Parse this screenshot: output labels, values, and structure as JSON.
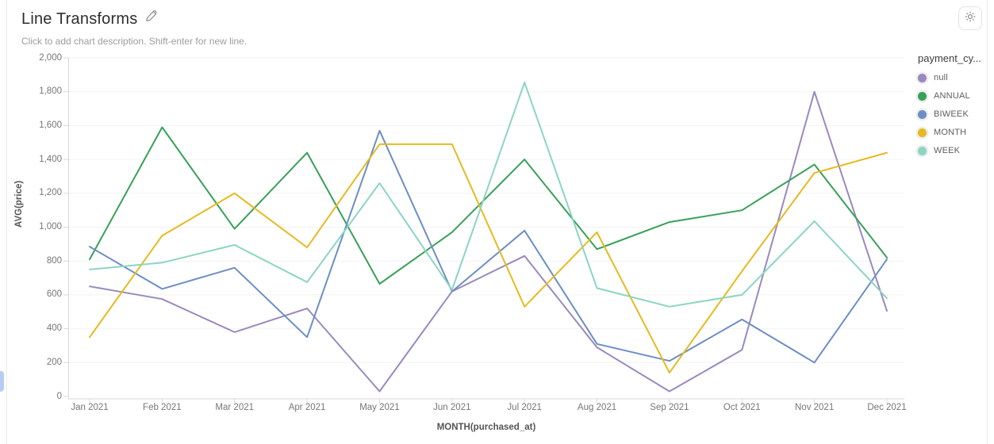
{
  "header": {
    "title": "Line Transforms",
    "subtitle": "Click to add chart description. Shift-enter for new line."
  },
  "toolbar": {
    "settings_icon": "gear-icon",
    "edit_icon": "pencil-icon"
  },
  "legend": {
    "title": "payment_cy...",
    "items": [
      {
        "label": "null",
        "color": "#9a89bd"
      },
      {
        "label": "ANNUAL",
        "color": "#38a158"
      },
      {
        "label": "BIWEEK",
        "color": "#6d8ec4"
      },
      {
        "label": "MONTH",
        "color": "#e6ba1f"
      },
      {
        "label": "WEEK",
        "color": "#8bd5c2"
      }
    ]
  },
  "chart_data": {
    "type": "line",
    "x": [
      "Jan 2021",
      "Feb 2021",
      "Mar 2021",
      "Apr 2021",
      "May 2021",
      "Jun 2021",
      "Jul 2021",
      "Aug 2021",
      "Sep 2021",
      "Oct 2021",
      "Nov 2021",
      "Dec 2021"
    ],
    "series": [
      {
        "name": "null",
        "color": "#9a89bd",
        "values": [
          650,
          575,
          380,
          520,
          30,
          620,
          830,
          290,
          30,
          275,
          1800,
          505
        ]
      },
      {
        "name": "ANNUAL",
        "color": "#38a158",
        "values": [
          810,
          1590,
          990,
          1440,
          665,
          970,
          1400,
          870,
          1030,
          1100,
          1370,
          820
        ]
      },
      {
        "name": "BIWEEK",
        "color": "#6d8ec4",
        "values": [
          885,
          635,
          760,
          350,
          1570,
          620,
          980,
          310,
          210,
          455,
          200,
          810
        ]
      },
      {
        "name": "MONTH",
        "color": "#e6ba1f",
        "values": [
          350,
          950,
          1200,
          880,
          1490,
          1490,
          530,
          970,
          140,
          740,
          1320,
          1440
        ]
      },
      {
        "name": "WEEK",
        "color": "#8bd5c2",
        "values": [
          750,
          790,
          895,
          675,
          1260,
          630,
          1855,
          640,
          530,
          600,
          1035,
          580
        ]
      }
    ],
    "title": "Line Transforms",
    "xlabel": "MONTH(purchased_at)",
    "ylabel": "AVG(price)",
    "ylim": [
      0,
      2000
    ],
    "ytick_step": 200,
    "grid": true,
    "legend_position": "right",
    "colors": {
      "gridline": "#f2f2f2",
      "axis_line": "#d9d9d9",
      "tick_label": "#767676"
    }
  }
}
